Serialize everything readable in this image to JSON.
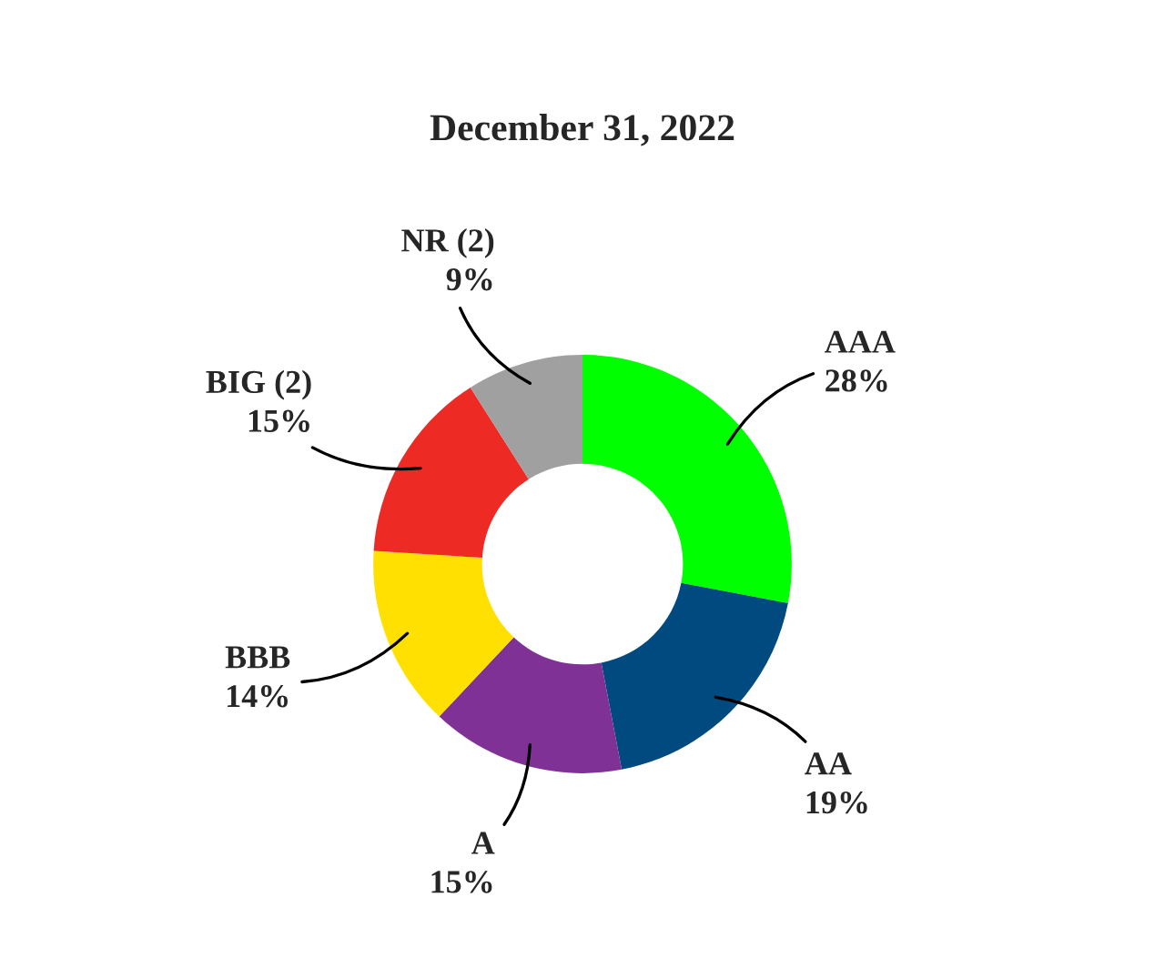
{
  "chart_data": {
    "type": "donut",
    "title": "December 31, 2022",
    "categories": [
      "AAA",
      "AA",
      "A",
      "BBB",
      "BIG (2)",
      "NR (2)"
    ],
    "values": [
      28,
      19,
      15,
      14,
      15,
      9
    ],
    "colors": [
      "#00ff00",
      "#004a7f",
      "#7f3196",
      "#ffe000",
      "#ee2a24",
      "#a0a0a0"
    ],
    "value_labels": [
      "28%",
      "19%",
      "15%",
      "14%",
      "15%",
      "9%"
    ],
    "legend": false
  }
}
